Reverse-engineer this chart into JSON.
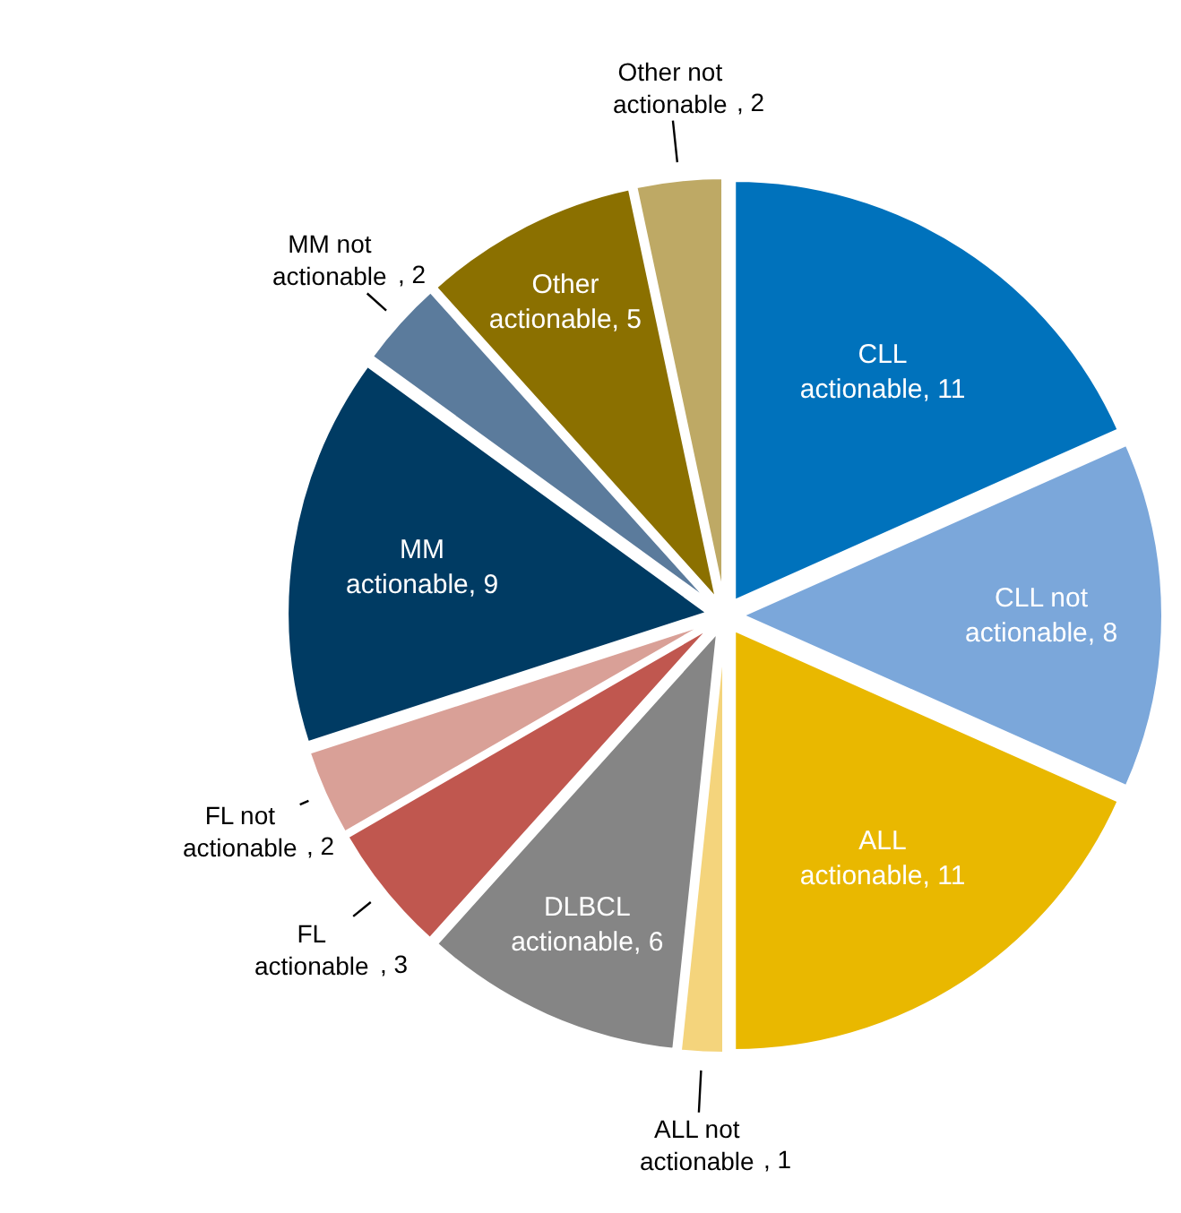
{
  "chart_data": {
    "type": "pie",
    "categories": [
      "CLL actionable",
      "CLL not actionable",
      "ALL actionable",
      "ALL not actionable",
      "DLBCL actionable",
      "FL actionable",
      "FL not actionable",
      "MM actionable",
      "MM not actionable",
      "Other actionable",
      "Other not actionable"
    ],
    "values": [
      11,
      8,
      11,
      1,
      6,
      3,
      2,
      9,
      2,
      5,
      2
    ],
    "colors": [
      "#0072bc",
      "#7ba7da",
      "#e9b800",
      "#f4d47c",
      "#858585",
      "#c0574f",
      "#d9a097",
      "#003b63",
      "#5b7b9c",
      "#8b7000",
      "#bea965"
    ],
    "value_labels": [
      ", 11",
      ", 8",
      ", 11",
      ", 1",
      ", 6",
      ", 3",
      ", 2",
      ", 9",
      ", 2",
      ", 5",
      ", 2"
    ],
    "legend": false
  }
}
